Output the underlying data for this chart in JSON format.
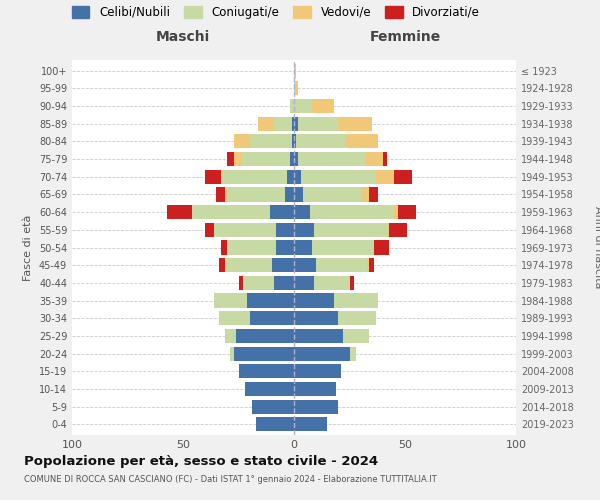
{
  "age_groups": [
    "0-4",
    "5-9",
    "10-14",
    "15-19",
    "20-24",
    "25-29",
    "30-34",
    "35-39",
    "40-44",
    "45-49",
    "50-54",
    "55-59",
    "60-64",
    "65-69",
    "70-74",
    "75-79",
    "80-84",
    "85-89",
    "90-94",
    "95-99",
    "100+"
  ],
  "birth_years": [
    "2019-2023",
    "2014-2018",
    "2009-2013",
    "2004-2008",
    "1999-2003",
    "1994-1998",
    "1989-1993",
    "1984-1988",
    "1979-1983",
    "1974-1978",
    "1969-1973",
    "1964-1968",
    "1959-1963",
    "1954-1958",
    "1949-1953",
    "1944-1948",
    "1939-1943",
    "1934-1938",
    "1929-1933",
    "1924-1928",
    "≤ 1923"
  ],
  "colors": {
    "celibi": "#4472a8",
    "coniugati": "#c8daa4",
    "vedovi": "#f0c878",
    "divorziati": "#cc2020"
  },
  "maschi": {
    "celibi": [
      17,
      19,
      22,
      25,
      27,
      26,
      20,
      21,
      9,
      10,
      8,
      8,
      11,
      4,
      3,
      2,
      1,
      1,
      0,
      0,
      0
    ],
    "coniugati": [
      0,
      0,
      0,
      0,
      2,
      5,
      14,
      15,
      14,
      21,
      22,
      28,
      35,
      26,
      30,
      22,
      19,
      8,
      2,
      0,
      0
    ],
    "vedovi": [
      0,
      0,
      0,
      0,
      0,
      0,
      0,
      0,
      0,
      0,
      0,
      0,
      0,
      1,
      0,
      3,
      7,
      7,
      0,
      0,
      0
    ],
    "divorziati": [
      0,
      0,
      0,
      0,
      0,
      0,
      0,
      0,
      2,
      3,
      3,
      4,
      11,
      4,
      7,
      3,
      0,
      0,
      0,
      0,
      0
    ]
  },
  "femmine": {
    "celibi": [
      15,
      20,
      19,
      21,
      25,
      22,
      20,
      18,
      9,
      10,
      8,
      9,
      7,
      4,
      3,
      2,
      1,
      2,
      0,
      0,
      0
    ],
    "coniugati": [
      0,
      0,
      0,
      0,
      3,
      12,
      17,
      20,
      16,
      23,
      28,
      33,
      38,
      26,
      34,
      30,
      22,
      18,
      8,
      1,
      0
    ],
    "vedovi": [
      0,
      0,
      0,
      0,
      0,
      0,
      0,
      0,
      0,
      1,
      0,
      1,
      2,
      4,
      8,
      8,
      15,
      15,
      10,
      1,
      1
    ],
    "divorziati": [
      0,
      0,
      0,
      0,
      0,
      0,
      0,
      0,
      2,
      2,
      7,
      8,
      8,
      4,
      8,
      2,
      0,
      0,
      0,
      0,
      0
    ]
  },
  "xlim": 100,
  "title": "Popolazione per età, sesso e stato civile - 2024",
  "subtitle": "COMUNE DI ROCCA SAN CASCIANO (FC) - Dati ISTAT 1° gennaio 2024 - Elaborazione TUTTITALIA.IT",
  "ylabel_left": "Fasce di età",
  "ylabel_right": "Anni di nascita",
  "xlabel_left": "Maschi",
  "xlabel_right": "Femmine",
  "legend_labels": [
    "Celibi/Nubili",
    "Coniugati/e",
    "Vedovi/e",
    "Divorziati/e"
  ],
  "bg_color": "#f0f0f0",
  "plot_bg_color": "#ffffff"
}
